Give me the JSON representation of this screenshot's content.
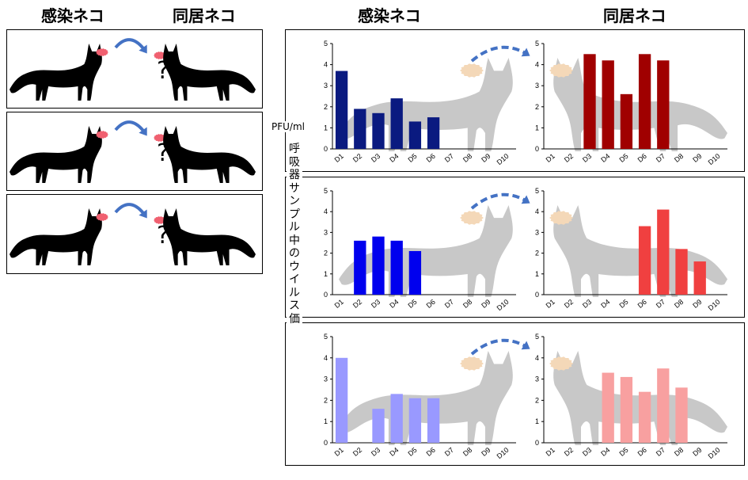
{
  "headers": {
    "left_infected": "感染ネコ",
    "left_cohoused": "同居ネコ",
    "right_infected": "感染ネコ",
    "right_cohoused": "同居ネコ"
  },
  "question_mark": "?",
  "y_unit": "PFU/ml",
  "y_axis_label": "呼吸器サンプル中のウイルス価",
  "chart_data": [
    {
      "type": "bar",
      "row": 1,
      "role": "infected",
      "color": "#0a1a80",
      "categories": [
        "D1",
        "D2",
        "D3",
        "D4",
        "D5",
        "D6",
        "D7",
        "D8",
        "D9",
        "D10"
      ],
      "values": [
        3.7,
        1.9,
        1.7,
        2.4,
        1.3,
        1.5,
        null,
        null,
        null,
        null
      ],
      "ylim": [
        0,
        5
      ],
      "yticks": [
        "0",
        "1",
        "2",
        "3",
        "4",
        "5"
      ]
    },
    {
      "type": "bar",
      "row": 1,
      "role": "cohoused",
      "color": "#a00000",
      "categories": [
        "D1",
        "D2",
        "D3",
        "D4",
        "D5",
        "D6",
        "D7",
        "D8",
        "D9",
        "D10"
      ],
      "values": [
        null,
        null,
        4.5,
        4.2,
        2.6,
        4.5,
        4.2,
        null,
        null,
        null
      ],
      "ylim": [
        0,
        5
      ],
      "yticks": [
        "0",
        "1",
        "2",
        "3",
        "4",
        "5"
      ]
    },
    {
      "type": "bar",
      "row": 2,
      "role": "infected",
      "color": "#0000ee",
      "categories": [
        "D1",
        "D2",
        "D3",
        "D4",
        "D5",
        "D6",
        "D7",
        "D8",
        "D9",
        "D10"
      ],
      "values": [
        null,
        2.6,
        2.8,
        2.6,
        2.1,
        null,
        null,
        null,
        null,
        null
      ],
      "ylim": [
        0,
        5
      ],
      "yticks": [
        "0",
        "1",
        "2",
        "3",
        "4",
        "5"
      ]
    },
    {
      "type": "bar",
      "row": 2,
      "role": "cohoused",
      "color": "#f04040",
      "categories": [
        "D1",
        "D2",
        "D3",
        "D4",
        "D5",
        "D6",
        "D7",
        "D8",
        "D9",
        "D10"
      ],
      "values": [
        null,
        null,
        null,
        null,
        null,
        3.3,
        4.1,
        2.2,
        1.6,
        null
      ],
      "ylim": [
        0,
        5
      ],
      "yticks": [
        "0",
        "1",
        "2",
        "3",
        "4",
        "5"
      ]
    },
    {
      "type": "bar",
      "row": 3,
      "role": "infected",
      "color": "#9999ff",
      "categories": [
        "D1",
        "D2",
        "D3",
        "D4",
        "D5",
        "D6",
        "D7",
        "D8",
        "D9",
        "D10"
      ],
      "values": [
        4.0,
        null,
        1.6,
        2.3,
        2.1,
        2.1,
        null,
        null,
        null,
        null
      ],
      "ylim": [
        0,
        5
      ],
      "yticks": [
        "0",
        "1",
        "2",
        "3",
        "4",
        "5"
      ]
    },
    {
      "type": "bar",
      "row": 3,
      "role": "cohoused",
      "color": "#f8a0a0",
      "categories": [
        "D1",
        "D2",
        "D3",
        "D4",
        "D5",
        "D6",
        "D7",
        "D8",
        "D9",
        "D10"
      ],
      "values": [
        null,
        null,
        null,
        3.3,
        3.1,
        2.4,
        3.5,
        2.6,
        null,
        null
      ],
      "ylim": [
        0,
        5
      ],
      "yticks": [
        "0",
        "1",
        "2",
        "3",
        "4",
        "5"
      ]
    }
  ],
  "colors": {
    "arrow": "#4472c4",
    "virus": "#f4d8b8",
    "cat_gray": "#c8c8c8",
    "cat_black": "#000000",
    "virus_red": "#f06070"
  }
}
